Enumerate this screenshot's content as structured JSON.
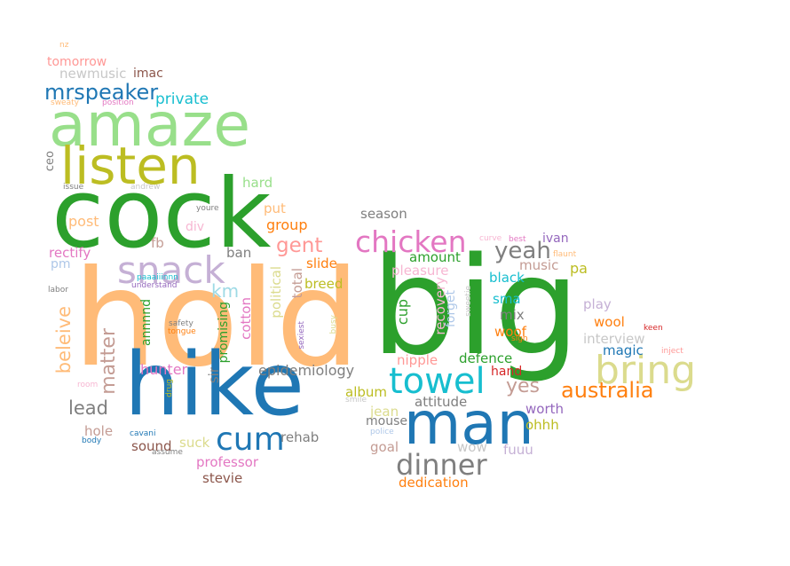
{
  "words": [
    {
      "text": "hold",
      "color": "#ffbb78"
    },
    {
      "text": "big",
      "color": "#2ca02c"
    },
    {
      "text": "cock",
      "color": "#2ca02c"
    },
    {
      "text": "hike",
      "color": "#1f77b4"
    },
    {
      "text": "amaze",
      "color": "#98df8a"
    },
    {
      "text": "listen",
      "color": "#bcbd22"
    },
    {
      "text": "man",
      "color": "#1f77b4"
    },
    {
      "text": "towel",
      "color": "#17becf"
    },
    {
      "text": "snack",
      "color": "#c5b0d5"
    },
    {
      "text": "bring",
      "color": "#dbdb8d"
    },
    {
      "text": "cum",
      "color": "#1f77b4"
    },
    {
      "text": "chicken",
      "color": "#e377c2"
    },
    {
      "text": "dinner",
      "color": "#7f7f7f"
    },
    {
      "text": "australia",
      "color": "#ff7f0e"
    },
    {
      "text": "mrspeaker",
      "color": "#1f77b4"
    },
    {
      "text": "yeah",
      "color": "#7f7f7f"
    },
    {
      "text": "yes",
      "color": "#c49c94"
    },
    {
      "text": "gent",
      "color": "#ff9896"
    },
    {
      "text": "km",
      "color": "#9edae5"
    },
    {
      "text": "lead",
      "color": "#7f7f7f"
    },
    {
      "text": "beleive",
      "color": "#ffbb78"
    },
    {
      "text": "matter",
      "color": "#c49c94"
    },
    {
      "text": "private",
      "color": "#17becf"
    },
    {
      "text": "newmusic",
      "color": "#c7c7c7"
    },
    {
      "text": "imac",
      "color": "#8c564b"
    },
    {
      "text": "tomorrow",
      "color": "#ff9896"
    },
    {
      "text": "nz",
      "color": "#ffbb78"
    },
    {
      "text": "sweaty",
      "color": "#ffbb78"
    },
    {
      "text": "position",
      "color": "#e377c2"
    },
    {
      "text": "ceo",
      "color": "#7f7f7f"
    },
    {
      "text": "issue",
      "color": "#7f7f7f"
    },
    {
      "text": "andrew",
      "color": "#c7c7c7"
    },
    {
      "text": "hard",
      "color": "#98df8a"
    },
    {
      "text": "youre",
      "color": "#7f7f7f"
    },
    {
      "text": "put",
      "color": "#ffbb78"
    },
    {
      "text": "post",
      "color": "#ffbb78"
    },
    {
      "text": "group",
      "color": "#ff7f0e"
    },
    {
      "text": "fb",
      "color": "#c49c94"
    },
    {
      "text": "div",
      "color": "#f7b6d2"
    },
    {
      "text": "ban",
      "color": "#7f7f7f"
    },
    {
      "text": "rectify",
      "color": "#e377c2"
    },
    {
      "text": "pm",
      "color": "#aec7e8"
    },
    {
      "text": "labor",
      "color": "#7f7f7f"
    },
    {
      "text": "understand",
      "color": "#9467bd"
    },
    {
      "text": "season",
      "color": "#7f7f7f"
    },
    {
      "text": "slide",
      "color": "#ff7f0e"
    },
    {
      "text": "breed",
      "color": "#bcbd22"
    },
    {
      "text": "political",
      "color": "#dbdb8d"
    },
    {
      "text": "total",
      "color": "#c49c94"
    },
    {
      "text": "annnnd",
      "color": "#2ca02c"
    },
    {
      "text": "promising",
      "color": "#2ca02c"
    },
    {
      "text": "cotton",
      "color": "#e377c2"
    },
    {
      "text": "safety",
      "color": "#7f7f7f"
    },
    {
      "text": "tongue",
      "color": "#ff7f0e"
    },
    {
      "text": "hunter",
      "color": "#e377c2"
    },
    {
      "text": "sir",
      "color": "#7f7f7f"
    },
    {
      "text": "epidemiology",
      "color": "#7f7f7f"
    },
    {
      "text": "sexiest",
      "color": "#9467bd"
    },
    {
      "text": "busy",
      "color": "#dbdb8d"
    },
    {
      "text": "cup",
      "color": "#2ca02c"
    },
    {
      "text": "amount",
      "color": "#2ca02c"
    },
    {
      "text": "pleasure",
      "color": "#f7b6d2"
    },
    {
      "text": "recovery",
      "color": "#f7b6d2"
    },
    {
      "text": "forget",
      "color": "#aec7e8"
    },
    {
      "text": "sweetie",
      "color": "#c7c7c7"
    },
    {
      "text": "curve",
      "color": "#f7b6d2"
    },
    {
      "text": "best",
      "color": "#e377c2"
    },
    {
      "text": "ivan",
      "color": "#9467bd"
    },
    {
      "text": "music",
      "color": "#c49c94"
    },
    {
      "text": "pa",
      "color": "#bcbd22"
    },
    {
      "text": "flaunt",
      "color": "#ffbb78"
    },
    {
      "text": "black",
      "color": "#17becf"
    },
    {
      "text": "sma",
      "color": "#17becf"
    },
    {
      "text": "mix",
      "color": "#7f7f7f"
    },
    {
      "text": "woof",
      "color": "#ff7f0e"
    },
    {
      "text": "sign",
      "color": "#ff7f0e"
    },
    {
      "text": "play",
      "color": "#c5b0d5"
    },
    {
      "text": "wool",
      "color": "#ff7f0e"
    },
    {
      "text": "keen",
      "color": "#d62728"
    },
    {
      "text": "interview",
      "color": "#c7c7c7"
    },
    {
      "text": "magic",
      "color": "#1f77b4"
    },
    {
      "text": "inject",
      "color": "#ff9896"
    },
    {
      "text": "nipple",
      "color": "#ff9896"
    },
    {
      "text": "defence",
      "color": "#2ca02c"
    },
    {
      "text": "hand",
      "color": "#d62728"
    },
    {
      "text": "album",
      "color": "#bcbd22"
    },
    {
      "text": "smile",
      "color": "#c7c7c7"
    },
    {
      "text": "attitude",
      "color": "#7f7f7f"
    },
    {
      "text": "jean",
      "color": "#dbdb8d"
    },
    {
      "text": "worth",
      "color": "#9467bd"
    },
    {
      "text": "mouse",
      "color": "#7f7f7f"
    },
    {
      "text": "police",
      "color": "#aec7e8"
    },
    {
      "text": "ohhh",
      "color": "#bcbd22"
    },
    {
      "text": "goal",
      "color": "#c49c94"
    },
    {
      "text": "wow",
      "color": "#c7c7c7"
    },
    {
      "text": "fuuu",
      "color": "#c5b0d5"
    },
    {
      "text": "dedication",
      "color": "#ff7f0e"
    },
    {
      "text": "room",
      "color": "#f7b6d2"
    },
    {
      "text": "drug",
      "color": "#bcbd22"
    },
    {
      "text": "hole",
      "color": "#c49c94"
    },
    {
      "text": "body",
      "color": "#1f77b4"
    },
    {
      "text": "cavani",
      "color": "#1f77b4"
    },
    {
      "text": "sound",
      "color": "#8c564b"
    },
    {
      "text": "suck",
      "color": "#dbdb8d"
    },
    {
      "text": "assume",
      "color": "#7f7f7f"
    },
    {
      "text": "rehab",
      "color": "#7f7f7f"
    },
    {
      "text": "professor",
      "color": "#e377c2"
    },
    {
      "text": "stevie",
      "color": "#8c564b"
    },
    {
      "text": "paaaiiinnn",
      "color": "#17becf"
    }
  ]
}
